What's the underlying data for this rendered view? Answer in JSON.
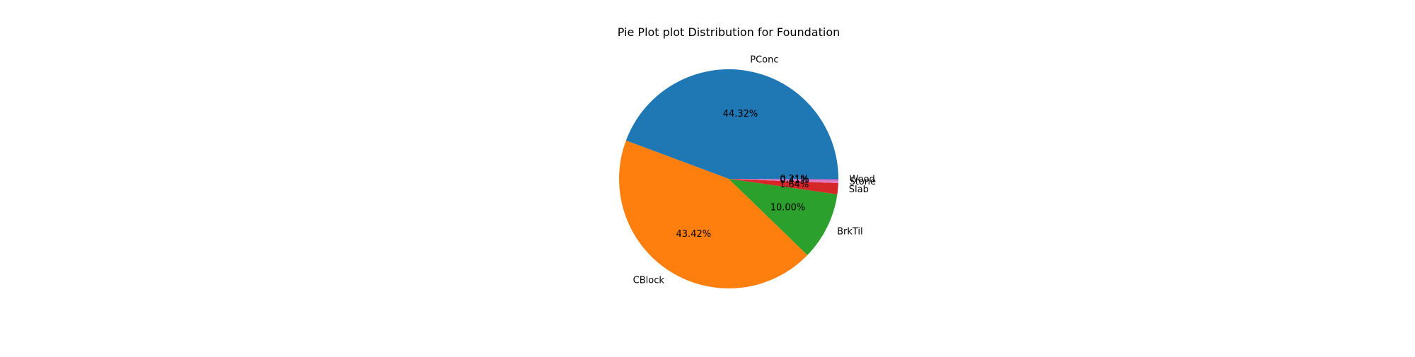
{
  "chart_data": {
    "type": "pie",
    "title": "Pie Plot plot Distribution for Foundation",
    "slices": [
      {
        "label": "PConc",
        "value": 44.32,
        "pct_label": "44.32%",
        "color": "#1f77b4"
      },
      {
        "label": "CBlock",
        "value": 43.42,
        "pct_label": "43.42%",
        "color": "#ff7f0e"
      },
      {
        "label": "BrkTil",
        "value": 10.0,
        "pct_label": "10.00%",
        "color": "#2ca02c"
      },
      {
        "label": "Slab",
        "value": 1.64,
        "pct_label": "1.64%",
        "color": "#d62728"
      },
      {
        "label": "Stone",
        "value": 0.41,
        "pct_label": "0.41%",
        "color": "#e377c2"
      },
      {
        "label": "Wood",
        "value": 0.21,
        "pct_label": "0.21%",
        "color": "#9467bd"
      }
    ],
    "start_angle": "0 degrees (3 o'clock)",
    "direction": "counterclockwise",
    "legend": "none"
  }
}
